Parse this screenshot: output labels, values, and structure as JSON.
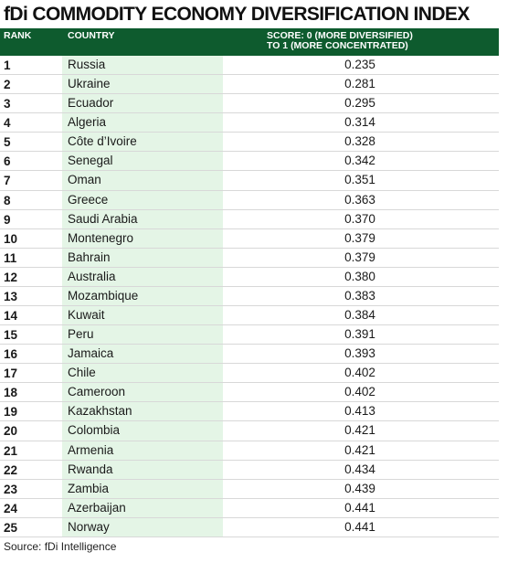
{
  "title": "fDi COMMODITY ECONOMY DIVERSIFICATION INDEX",
  "columns": {
    "rank": "RANK",
    "country": "COUNTRY",
    "score_line1": "SCORE: 0 (MORE DIVERSIFIED)",
    "score_line2": "TO 1 (MORE CONCENTRATED)"
  },
  "rows": [
    {
      "rank": "1",
      "country": "Russia",
      "score": "0.235"
    },
    {
      "rank": "2",
      "country": "Ukraine",
      "score": "0.281"
    },
    {
      "rank": "3",
      "country": "Ecuador",
      "score": "0.295"
    },
    {
      "rank": "4",
      "country": "Algeria",
      "score": "0.314"
    },
    {
      "rank": "5",
      "country": "Côte d’Ivoire",
      "score": "0.328"
    },
    {
      "rank": "6",
      "country": "Senegal",
      "score": "0.342"
    },
    {
      "rank": "7",
      "country": "Oman",
      "score": "0.351"
    },
    {
      "rank": "8",
      "country": "Greece",
      "score": "0.363"
    },
    {
      "rank": "9",
      "country": "Saudi Arabia",
      "score": "0.370"
    },
    {
      "rank": "10",
      "country": "Montenegro",
      "score": "0.379"
    },
    {
      "rank": "11",
      "country": "Bahrain",
      "score": "0.379"
    },
    {
      "rank": "12",
      "country": "Australia",
      "score": "0.380"
    },
    {
      "rank": "13",
      "country": "Mozambique",
      "score": "0.383"
    },
    {
      "rank": "14",
      "country": "Kuwait",
      "score": "0.384"
    },
    {
      "rank": "15",
      "country": "Peru",
      "score": "0.391"
    },
    {
      "rank": "16",
      "country": "Jamaica",
      "score": "0.393"
    },
    {
      "rank": "17",
      "country": "Chile",
      "score": "0.402"
    },
    {
      "rank": "18",
      "country": "Cameroon",
      "score": "0.402"
    },
    {
      "rank": "19",
      "country": "Kazakhstan",
      "score": "0.413"
    },
    {
      "rank": "20",
      "country": "Colombia",
      "score": "0.421"
    },
    {
      "rank": "21",
      "country": "Armenia",
      "score": "0.421"
    },
    {
      "rank": "22",
      "country": "Rwanda",
      "score": "0.434"
    },
    {
      "rank": "23",
      "country": "Zambia",
      "score": "0.439"
    },
    {
      "rank": "24",
      "country": "Azerbaijan",
      "score": "0.441"
    },
    {
      "rank": "25",
      "country": "Norway",
      "score": "0.441"
    }
  ],
  "source": "Source: fDi Intelligence",
  "colors": {
    "header_bg": "#0e5b2e",
    "country_bg": "#e4f5e6"
  }
}
